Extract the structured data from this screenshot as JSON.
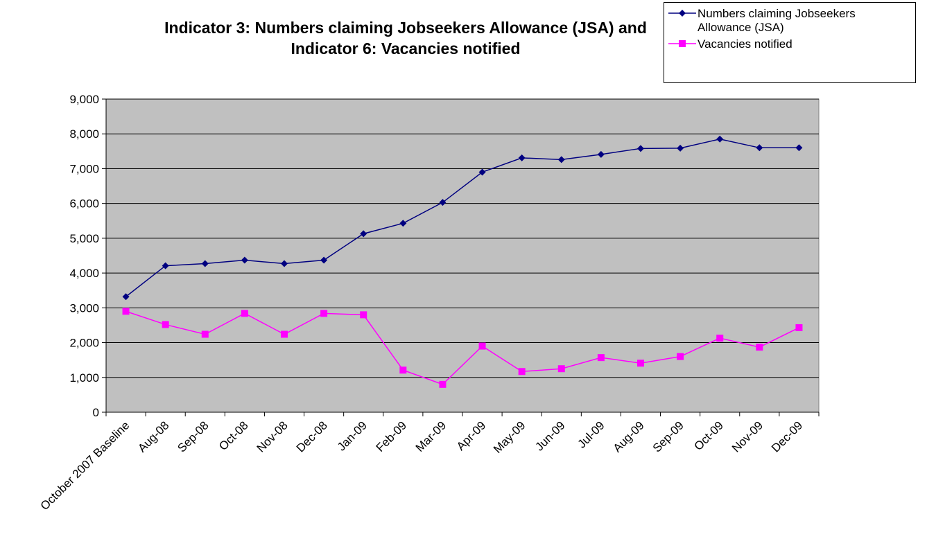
{
  "chart_data": {
    "type": "line",
    "title": "Indicator 3: Numbers claiming Jobseekers Allowance (JSA) and Indicator 6: Vacancies notified",
    "categories": [
      "October 2007 Baseline",
      "Aug-08",
      "Sep-08",
      "Oct-08",
      "Nov-08",
      "Dec-08",
      "Jan-09",
      "Feb-09",
      "Mar-09",
      "Apr-09",
      "May-09",
      "Jun-09",
      "Jul-09",
      "Aug-09",
      "Sep-09",
      "Oct-09",
      "Nov-09",
      "Dec-09"
    ],
    "series": [
      {
        "name": "Numbers claiming Jobseekers Allowance (JSA)",
        "color": "#000080",
        "marker": "diamond",
        "values": [
          3320,
          4210,
          4270,
          4370,
          4270,
          4370,
          5130,
          5430,
          6030,
          6900,
          7310,
          7260,
          7410,
          7580,
          7590,
          7850,
          7600,
          7600
        ]
      },
      {
        "name": "Vacancies notified",
        "color": "#ff00ff",
        "marker": "square",
        "values": [
          2900,
          2520,
          2240,
          2840,
          2240,
          2840,
          2800,
          1210,
          800,
          1900,
          1170,
          1250,
          1570,
          1410,
          1600,
          2130,
          1870,
          2430
        ]
      }
    ],
    "ylim": [
      0,
      9000
    ],
    "yticks": [
      0,
      {
        "value": 1000,
        "label": "1,000"
      },
      {
        "value": 2000,
        "label": "2,000"
      },
      {
        "value": 3000,
        "label": "3,000"
      },
      {
        "value": 4000,
        "label": "4,000"
      },
      {
        "value": 5000,
        "label": "5,000"
      },
      {
        "value": 6000,
        "label": "6,000"
      },
      {
        "value": 7000,
        "label": "7,000"
      },
      {
        "value": 8000,
        "label": "8,000"
      },
      {
        "value": 9000,
        "label": "9,000"
      }
    ],
    "grid": true,
    "legend": "top-right"
  }
}
